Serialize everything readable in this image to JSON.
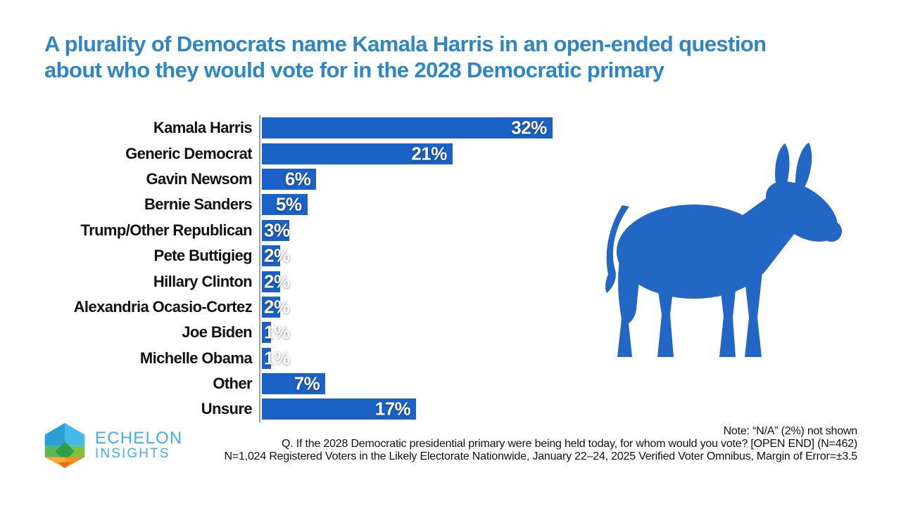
{
  "title": {
    "lines": [
      "A plurality of Democrats name Kamala Harris in an open-ended question",
      "about who they would vote for in the 2028 Democratic primary"
    ]
  },
  "chart_data": {
    "type": "bar",
    "orientation": "horizontal",
    "categories": [
      "Kamala Harris",
      "Generic Democrat",
      "Gavin Newsom",
      "Bernie Sanders",
      "Trump/Other Republican",
      "Pete Buttigieg",
      "Hillary Clinton",
      "Alexandria Ocasio-Cortez",
      "Joe Biden",
      "Michelle Obama",
      "Other",
      "Unsure"
    ],
    "values": [
      32,
      21,
      6,
      5,
      3,
      2,
      2,
      2,
      1,
      1,
      7,
      17
    ],
    "value_labels": [
      "32%",
      "21%",
      "6%",
      "5%",
      "3%",
      "2%",
      "2%",
      "2%",
      "1%",
      "1%",
      "7%",
      "17%"
    ],
    "unit": "%",
    "xlim": [
      0,
      41
    ],
    "grid": false,
    "legend": "none",
    "title": "",
    "xlabel": "",
    "ylabel": ""
  },
  "colors": {
    "title_blue": "#2E86C5",
    "bar_blue": "#1A62C6",
    "donkey_blue": "#2367C5",
    "axis_gray": "#9E9E9E",
    "label_black": "#121212",
    "logo_text_blue": "#45AFE5"
  },
  "logo": {
    "line1": "ECHELON",
    "line2": "INSIGHTS"
  },
  "footer": {
    "lines": [
      "Note: “N/A” (2%) not shown",
      "Q. If the 2028 Democratic presidential primary were being held today, for whom would you vote? [OPEN END] (N=462)",
      "N=1,024 Registered Voters in the Likely Electorate Nationwide, January 22–24, 2025 Verified Voter Omnibus, Margin of Error=±3.5"
    ]
  }
}
